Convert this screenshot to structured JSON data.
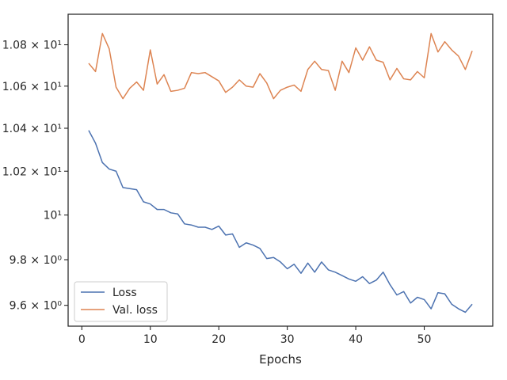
{
  "chart_data": {
    "type": "line",
    "title": "",
    "xlabel": "Epochs",
    "ylabel": "",
    "yscale": "log",
    "xlim": [
      -2,
      60
    ],
    "ylim": [
      9.51,
      10.95
    ],
    "grid": false,
    "legend_position": "lower-left",
    "x_ticks": [
      {
        "value": 0,
        "label": "0"
      },
      {
        "value": 10,
        "label": "10"
      },
      {
        "value": 20,
        "label": "20"
      },
      {
        "value": 30,
        "label": "30"
      },
      {
        "value": 40,
        "label": "40"
      },
      {
        "value": 50,
        "label": "50"
      }
    ],
    "y_ticks": [
      {
        "value": 9.6,
        "label": "9.6 × 10⁰"
      },
      {
        "value": 9.8,
        "label": "9.8 × 10⁰"
      },
      {
        "value": 10.0,
        "label": "10¹"
      },
      {
        "value": 10.2,
        "label": "1.02 × 10¹"
      },
      {
        "value": 10.4,
        "label": "1.04 × 10¹"
      },
      {
        "value": 10.6,
        "label": "1.06 × 10¹"
      },
      {
        "value": 10.8,
        "label": "1.08 × 10¹"
      }
    ],
    "x": [
      1,
      2,
      3,
      4,
      5,
      6,
      7,
      8,
      9,
      10,
      11,
      12,
      13,
      14,
      15,
      16,
      17,
      18,
      19,
      20,
      21,
      22,
      23,
      24,
      25,
      26,
      27,
      28,
      29,
      30,
      31,
      32,
      33,
      34,
      35,
      36,
      37,
      38,
      39,
      40,
      41,
      42,
      43,
      44,
      45,
      46,
      47,
      48,
      49,
      50,
      51,
      52,
      53,
      54,
      55,
      56,
      57
    ],
    "series": [
      {
        "name": "Loss",
        "color": "#4c72b0",
        "values": [
          10.39,
          10.33,
          10.24,
          10.21,
          10.2,
          10.125,
          10.12,
          10.115,
          10.06,
          10.05,
          10.025,
          10.025,
          10.01,
          10.005,
          9.96,
          9.955,
          9.945,
          9.945,
          9.935,
          9.95,
          9.91,
          9.915,
          9.855,
          9.875,
          9.865,
          9.85,
          9.805,
          9.81,
          9.79,
          9.76,
          9.78,
          9.74,
          9.785,
          9.745,
          9.79,
          9.755,
          9.745,
          9.73,
          9.715,
          9.705,
          9.725,
          9.695,
          9.71,
          9.745,
          9.69,
          9.645,
          9.66,
          9.61,
          9.635,
          9.625,
          9.585,
          9.655,
          9.65,
          9.605,
          9.585,
          9.57,
          9.605
        ]
      },
      {
        "name": "Val. loss",
        "color": "#dd8452",
        "values": [
          10.71,
          10.67,
          10.855,
          10.78,
          10.595,
          10.54,
          10.59,
          10.62,
          10.58,
          10.775,
          10.61,
          10.655,
          10.575,
          10.58,
          10.59,
          10.665,
          10.66,
          10.665,
          10.645,
          10.625,
          10.57,
          10.595,
          10.63,
          10.6,
          10.595,
          10.66,
          10.615,
          10.54,
          10.58,
          10.595,
          10.605,
          10.575,
          10.68,
          10.72,
          10.68,
          10.675,
          10.58,
          10.72,
          10.665,
          10.785,
          10.725,
          10.79,
          10.725,
          10.715,
          10.63,
          10.685,
          10.635,
          10.63,
          10.67,
          10.64,
          10.855,
          10.765,
          10.815,
          10.775,
          10.745,
          10.68,
          10.77
        ]
      }
    ]
  }
}
